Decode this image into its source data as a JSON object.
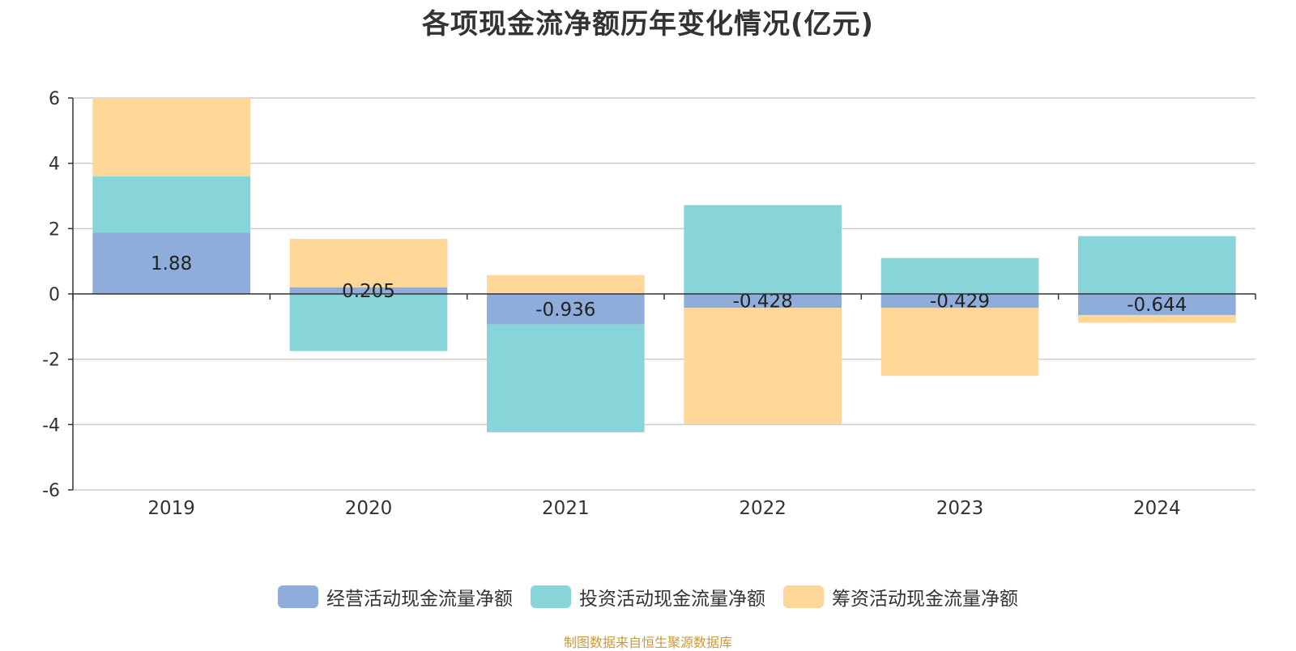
{
  "chart_data": {
    "type": "bar",
    "stacked": true,
    "title": "各项现金流净额历年变化情况(亿元)",
    "categories": [
      "2019",
      "2020",
      "2021",
      "2022",
      "2023",
      "2024"
    ],
    "ylim": [
      -6,
      6
    ],
    "yticks": [
      6,
      4,
      2,
      0,
      -2,
      -4,
      -6
    ],
    "grid": true,
    "legend_position": "bottom",
    "series": [
      {
        "name": "经营活动现金流量净额",
        "color": "#8eaddb",
        "values": [
          1.88,
          0.205,
          -0.936,
          -0.428,
          -0.429,
          -0.644
        ],
        "labels": [
          "1.88",
          "0.205",
          "-0.936",
          "-0.428",
          "-0.429",
          "-0.644"
        ]
      },
      {
        "name": "投资活动现金流量净额",
        "color": "#87d5d8",
        "values": [
          1.72,
          -1.75,
          -3.3,
          2.72,
          1.1,
          1.77
        ]
      },
      {
        "name": "筹资活动现金流量净额",
        "color": "#ffd899",
        "values": [
          2.4,
          1.48,
          0.58,
          -3.55,
          -2.08,
          -0.24
        ]
      }
    ]
  },
  "source_note": "制图数据来自恒生聚源数据库"
}
